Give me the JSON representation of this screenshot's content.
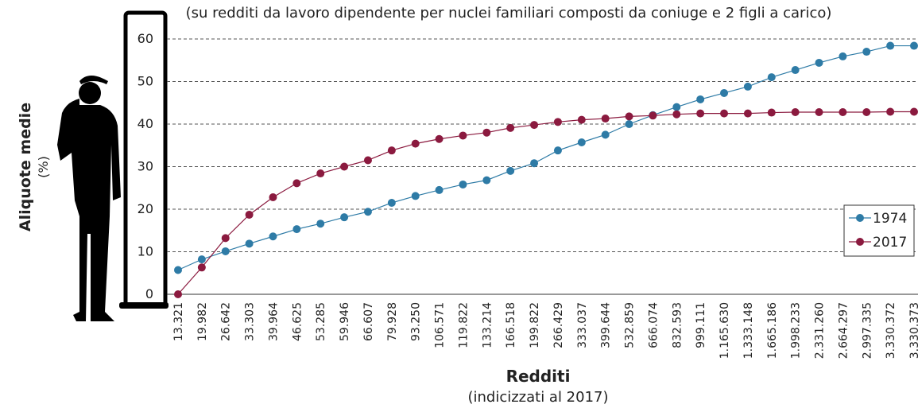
{
  "chart_data": {
    "type": "line",
    "subtitle": "(su redditi da lavoro dipendente per nuclei familiari composti da coniuge e 2 figli a carico)",
    "ylabel": "Aliquote medie",
    "ylabel_unit": "(%)",
    "xlabel": "Redditi",
    "xlabel_note": "(indicizzati al 2017)",
    "categories": [
      "13.321",
      "19.982",
      "26.642",
      "33.303",
      "39.964",
      "46.625",
      "53.285",
      "59.946",
      "66.607",
      "79.928",
      "93.250",
      "106.571",
      "119.822",
      "133.214",
      "166.518",
      "199.822",
      "266.429",
      "333.037",
      "399.644",
      "532.859",
      "666.074",
      "832.593",
      "999.111",
      "1.165.630",
      "1.333.148",
      "1.665.186",
      "1.998.233",
      "2.331.260",
      "2.664.297",
      "2.997.335",
      "3.330.372",
      "3.330.373"
    ],
    "series": [
      {
        "name": "1974",
        "color": "#2e7ba6",
        "values": [
          5.7,
          8.2,
          10.1,
          11.9,
          13.6,
          15.3,
          16.6,
          18.1,
          19.4,
          21.5,
          23.1,
          24.5,
          25.8,
          26.8,
          29.0,
          30.8,
          33.8,
          35.7,
          37.5,
          40.0,
          42.1,
          44.0,
          45.8,
          47.3,
          48.8,
          51.0,
          52.7,
          54.4,
          55.9,
          57.0,
          58.4,
          58.4
        ]
      },
      {
        "name": "2017",
        "color": "#8b1a3f",
        "values": [
          0,
          6.3,
          13.2,
          18.7,
          22.8,
          26.1,
          28.4,
          30.0,
          31.5,
          33.8,
          35.4,
          36.5,
          37.3,
          38.0,
          39.1,
          39.8,
          40.5,
          41.0,
          41.3,
          41.8,
          42.0,
          42.3,
          42.5,
          42.5,
          42.5,
          42.7,
          42.8,
          42.8,
          42.8,
          42.8,
          42.9,
          42.9
        ]
      }
    ],
    "ylim": [
      0,
      60
    ],
    "yticks": [
      0,
      10,
      20,
      30,
      40,
      50,
      60
    ],
    "grid": true,
    "legend": "right"
  }
}
